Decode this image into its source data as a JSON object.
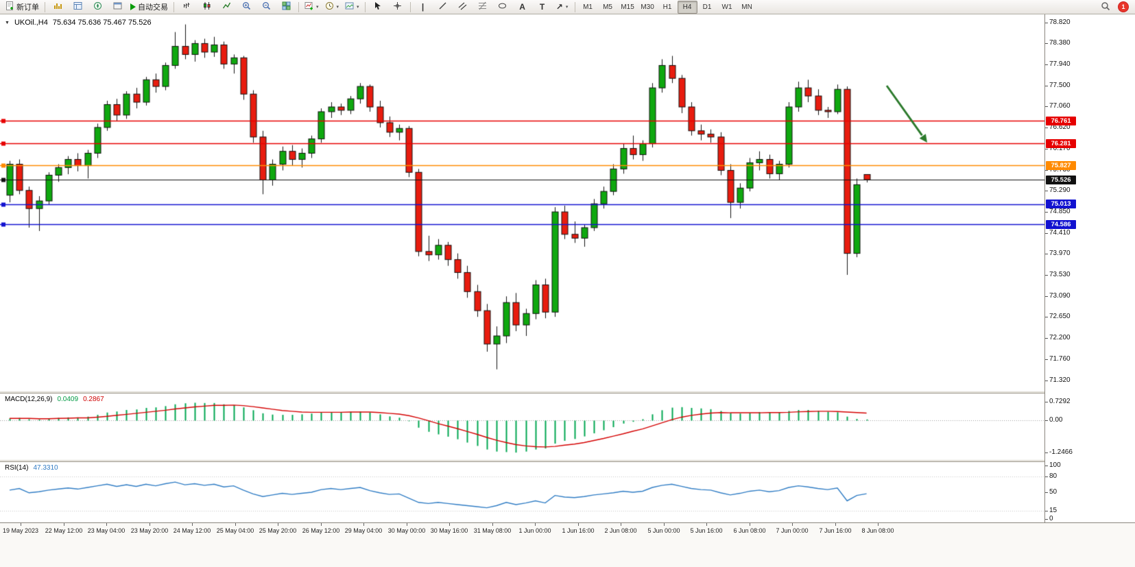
{
  "toolbar": {
    "new_order_label": "新订单",
    "auto_trading_label": "自动交易",
    "timeframes": [
      "M1",
      "M5",
      "M15",
      "M30",
      "H1",
      "H4",
      "D1",
      "W1",
      "MN"
    ],
    "active_timeframe": "H4",
    "notification_badge": "1"
  },
  "icons": {
    "chart_dropdown": "▼",
    "dropdown_caret": "▾",
    "vline_tool": "|",
    "text_tool": "A",
    "label_tool": "T",
    "arrow_tool": "↗"
  },
  "chart": {
    "symbol_label": "UKOil.,H4",
    "ohlc_label": "75.634 75.636 75.467 75.526",
    "price_axis": [
      "78.820",
      "78.380",
      "77.940",
      "77.500",
      "77.060",
      "76.620",
      "76.170",
      "75.730",
      "75.290",
      "74.850",
      "74.410",
      "73.970",
      "73.530",
      "73.090",
      "72.650",
      "72.200",
      "71.760",
      "71.320"
    ],
    "levels": [
      {
        "label": "76.761",
        "price": 76.761,
        "color": "#e60000"
      },
      {
        "label": "76.281",
        "price": 76.281,
        "color": "#e60000"
      },
      {
        "label": "75.827",
        "price": 75.827,
        "color": "#ff8a00"
      },
      {
        "label": "75.013",
        "price": 75.013,
        "color": "#1212d0"
      },
      {
        "label": "74.586",
        "price": 74.586,
        "color": "#1212d0"
      }
    ],
    "current_price": {
      "label": "75.526",
      "price": 75.526,
      "color": "#111111"
    }
  },
  "indicators": {
    "macd": {
      "name": "MACD(12,26,9)",
      "value_main": "0.0409",
      "value_signal": "0.2867",
      "axis": [
        "0.7292",
        "0.00",
        "-1.2466"
      ]
    },
    "rsi": {
      "name": "RSI(14)",
      "value": "47.3310",
      "axis": [
        "100",
        "80",
        "50",
        "15",
        "0"
      ]
    }
  },
  "colors": {
    "bull_candle": "#0fa80f",
    "bear_candle": "#e81c0f",
    "candle_outline": "#101010",
    "macd_histogram": "#00a650",
    "macd_signal": "#d40000",
    "rsi_line": "#2f7cc4",
    "arrow_annotation": "#2c7a2c"
  },
  "chart_data": {
    "type": "candlestick",
    "symbol": "UKOil",
    "timeframe": "H4",
    "ylim": [
      71.1,
      78.99
    ],
    "x_labels": [
      "19 May 2023",
      "22 May 12:00",
      "23 May 04:00",
      "23 May 20:00",
      "24 May 12:00",
      "25 May 04:00",
      "25 May 20:00",
      "26 May 12:00",
      "29 May 04:00",
      "30 May 00:00",
      "30 May 16:00",
      "31 May 08:00",
      "1 Jun 00:00",
      "1 Jun 16:00",
      "2 Jun 08:00",
      "5 Jun 00:00",
      "5 Jun 16:00",
      "6 Jun 08:00",
      "7 Jun 00:00",
      "7 Jun 16:00",
      "8 Jun 08:00"
    ],
    "candles": [
      [
        75.2,
        75.92,
        75.05,
        75.85
      ],
      [
        75.85,
        75.95,
        75.22,
        75.3
      ],
      [
        75.3,
        75.38,
        74.52,
        74.92
      ],
      [
        74.92,
        75.18,
        74.45,
        75.08
      ],
      [
        75.08,
        75.68,
        75.0,
        75.62
      ],
      [
        75.62,
        75.85,
        75.48,
        75.78
      ],
      [
        75.78,
        76.02,
        75.64,
        75.95
      ],
      [
        75.95,
        76.08,
        75.7,
        75.82
      ],
      [
        75.82,
        76.15,
        75.55,
        76.08
      ],
      [
        76.08,
        76.7,
        75.98,
        76.62
      ],
      [
        76.62,
        77.18,
        76.55,
        77.1
      ],
      [
        77.1,
        77.22,
        76.75,
        76.88
      ],
      [
        76.88,
        77.38,
        76.8,
        77.32
      ],
      [
        77.32,
        77.45,
        77.02,
        77.15
      ],
      [
        77.15,
        77.68,
        77.08,
        77.62
      ],
      [
        77.62,
        77.75,
        77.35,
        77.48
      ],
      [
        77.48,
        77.98,
        77.4,
        77.92
      ],
      [
        77.92,
        78.62,
        77.85,
        78.32
      ],
      [
        78.32,
        78.78,
        78.05,
        78.15
      ],
      [
        78.15,
        78.45,
        78.0,
        78.38
      ],
      [
        78.38,
        78.48,
        78.08,
        78.2
      ],
      [
        78.2,
        78.52,
        78.1,
        78.35
      ],
      [
        78.35,
        78.42,
        77.85,
        77.95
      ],
      [
        77.95,
        78.15,
        77.75,
        78.08
      ],
      [
        78.08,
        78.12,
        77.2,
        77.32
      ],
      [
        77.32,
        77.4,
        76.3,
        76.42
      ],
      [
        76.42,
        76.55,
        75.22,
        75.52
      ],
      [
        75.52,
        75.95,
        75.4,
        75.85
      ],
      [
        75.85,
        76.22,
        75.72,
        76.12
      ],
      [
        76.12,
        76.25,
        75.82,
        75.95
      ],
      [
        75.95,
        76.18,
        75.78,
        76.08
      ],
      [
        76.08,
        76.45,
        75.98,
        76.38
      ],
      [
        76.38,
        77.02,
        76.3,
        76.95
      ],
      [
        76.95,
        77.15,
        76.82,
        77.05
      ],
      [
        77.05,
        77.12,
        76.88,
        76.98
      ],
      [
        76.98,
        77.28,
        76.9,
        77.22
      ],
      [
        77.22,
        77.55,
        77.12,
        77.48
      ],
      [
        77.48,
        77.52,
        76.95,
        77.05
      ],
      [
        77.05,
        77.18,
        76.62,
        76.72
      ],
      [
        76.72,
        76.85,
        76.42,
        76.52
      ],
      [
        76.52,
        76.68,
        76.35,
        76.6
      ],
      [
        76.6,
        76.65,
        75.58,
        75.68
      ],
      [
        75.68,
        75.75,
        73.92,
        74.02
      ],
      [
        74.02,
        74.35,
        73.82,
        73.95
      ],
      [
        73.95,
        74.28,
        73.85,
        74.15
      ],
      [
        74.15,
        74.22,
        73.72,
        73.85
      ],
      [
        73.85,
        73.98,
        73.45,
        73.58
      ],
      [
        73.58,
        73.72,
        73.05,
        73.18
      ],
      [
        73.18,
        73.32,
        72.65,
        72.78
      ],
      [
        72.78,
        72.92,
        71.92,
        72.08
      ],
      [
        72.08,
        72.45,
        71.55,
        72.25
      ],
      [
        72.25,
        73.08,
        72.1,
        72.95
      ],
      [
        72.95,
        73.15,
        72.35,
        72.48
      ],
      [
        72.48,
        72.82,
        72.25,
        72.72
      ],
      [
        72.72,
        73.42,
        72.6,
        73.32
      ],
      [
        73.32,
        73.45,
        72.62,
        72.75
      ],
      [
        72.75,
        74.95,
        72.65,
        74.85
      ],
      [
        74.85,
        74.98,
        74.28,
        74.38
      ],
      [
        74.38,
        74.65,
        74.2,
        74.3
      ],
      [
        74.3,
        74.58,
        74.12,
        74.52
      ],
      [
        74.52,
        75.12,
        74.45,
        75.02
      ],
      [
        75.02,
        75.38,
        74.92,
        75.28
      ],
      [
        75.28,
        75.85,
        75.2,
        75.75
      ],
      [
        75.75,
        76.28,
        75.65,
        76.18
      ],
      [
        76.18,
        76.45,
        75.95,
        76.05
      ],
      [
        76.05,
        76.35,
        75.92,
        76.28
      ],
      [
        76.28,
        77.55,
        76.2,
        77.45
      ],
      [
        77.45,
        78.05,
        77.35,
        77.92
      ],
      [
        77.92,
        78.12,
        77.55,
        77.65
      ],
      [
        77.65,
        77.72,
        76.92,
        77.05
      ],
      [
        77.05,
        77.15,
        76.45,
        76.55
      ],
      [
        76.55,
        76.68,
        76.35,
        76.48
      ],
      [
        76.48,
        76.58,
        76.3,
        76.42
      ],
      [
        76.42,
        76.52,
        75.62,
        75.72
      ],
      [
        75.72,
        75.85,
        74.72,
        75.05
      ],
      [
        75.05,
        75.45,
        74.92,
        75.35
      ],
      [
        75.35,
        75.98,
        75.28,
        75.88
      ],
      [
        75.88,
        76.12,
        75.72,
        75.95
      ],
      [
        75.95,
        76.05,
        75.55,
        75.65
      ],
      [
        75.65,
        75.92,
        75.52,
        75.85
      ],
      [
        75.85,
        77.15,
        75.78,
        77.05
      ],
      [
        77.05,
        77.58,
        76.95,
        77.45
      ],
      [
        77.45,
        77.62,
        77.15,
        77.28
      ],
      [
        77.28,
        77.42,
        76.88,
        76.98
      ],
      [
        76.98,
        77.05,
        76.82,
        76.95
      ],
      [
        76.95,
        77.52,
        76.9,
        77.42
      ],
      [
        77.42,
        77.48,
        73.53,
        73.98
      ],
      [
        73.98,
        75.55,
        73.9,
        75.42
      ],
      [
        75.634,
        75.636,
        75.467,
        75.526
      ]
    ],
    "macd": {
      "range": [
        -1.2466,
        0.7292
      ],
      "histogram": [
        0.08,
        0.1,
        0.05,
        0.04,
        0.07,
        0.1,
        0.12,
        0.12,
        0.15,
        0.22,
        0.31,
        0.35,
        0.41,
        0.43,
        0.49,
        0.51,
        0.56,
        0.63,
        0.67,
        0.69,
        0.68,
        0.68,
        0.63,
        0.6,
        0.51,
        0.4,
        0.28,
        0.23,
        0.22,
        0.22,
        0.24,
        0.27,
        0.31,
        0.33,
        0.33,
        0.34,
        0.35,
        0.31,
        0.24,
        0.16,
        0.11,
        -0.03,
        -0.28,
        -0.44,
        -0.54,
        -0.63,
        -0.73,
        -0.86,
        -0.99,
        -1.13,
        -1.21,
        -1.23,
        -1.25,
        -1.21,
        -1.13,
        -1.09,
        -0.9,
        -0.79,
        -0.72,
        -0.62,
        -0.5,
        -0.38,
        -0.26,
        -0.12,
        -0.05,
        0.05,
        0.24,
        0.4,
        0.5,
        0.52,
        0.49,
        0.47,
        0.44,
        0.37,
        0.29,
        0.27,
        0.29,
        0.33,
        0.32,
        0.32,
        0.37,
        0.41,
        0.41,
        0.38,
        0.34,
        0.32,
        0.15,
        0.06,
        0.0409
      ],
      "signal": [
        0.08,
        0.08,
        0.08,
        0.07,
        0.07,
        0.08,
        0.09,
        0.1,
        0.1,
        0.13,
        0.16,
        0.2,
        0.24,
        0.28,
        0.32,
        0.36,
        0.4,
        0.45,
        0.49,
        0.53,
        0.56,
        0.59,
        0.59,
        0.6,
        0.58,
        0.54,
        0.49,
        0.44,
        0.39,
        0.36,
        0.33,
        0.32,
        0.32,
        0.32,
        0.32,
        0.33,
        0.33,
        0.33,
        0.31,
        0.28,
        0.25,
        0.19,
        0.1,
        -0.01,
        -0.12,
        -0.22,
        -0.32,
        -0.43,
        -0.54,
        -0.66,
        -0.77,
        -0.86,
        -0.94,
        -0.99,
        -1.02,
        -1.03,
        -1.01,
        -0.96,
        -0.92,
        -0.86,
        -0.78,
        -0.7,
        -0.61,
        -0.52,
        -0.42,
        -0.33,
        -0.21,
        -0.09,
        0.03,
        0.13,
        0.2,
        0.25,
        0.29,
        0.31,
        0.3,
        0.3,
        0.3,
        0.3,
        0.31,
        0.31,
        0.32,
        0.34,
        0.35,
        0.36,
        0.36,
        0.35,
        0.33,
        0.31,
        0.2867
      ]
    },
    "rsi": {
      "range": [
        0,
        100
      ],
      "levels": [
        80,
        15
      ],
      "values": [
        54,
        57,
        49,
        51,
        54,
        56,
        58,
        56,
        59,
        62,
        65,
        61,
        64,
        61,
        65,
        62,
        66,
        69,
        64,
        66,
        63,
        65,
        60,
        62,
        54,
        47,
        42,
        45,
        48,
        46,
        48,
        50,
        55,
        57,
        55,
        57,
        59,
        53,
        49,
        46,
        47,
        39,
        31,
        29,
        31,
        29,
        27,
        25,
        23,
        21,
        25,
        31,
        27,
        30,
        34,
        30,
        44,
        41,
        40,
        42,
        45,
        47,
        49,
        52,
        50,
        52,
        59,
        63,
        65,
        61,
        57,
        55,
        54,
        49,
        45,
        48,
        52,
        54,
        51,
        53,
        59,
        62,
        60,
        57,
        55,
        58,
        34,
        44,
        47.33
      ]
    }
  }
}
